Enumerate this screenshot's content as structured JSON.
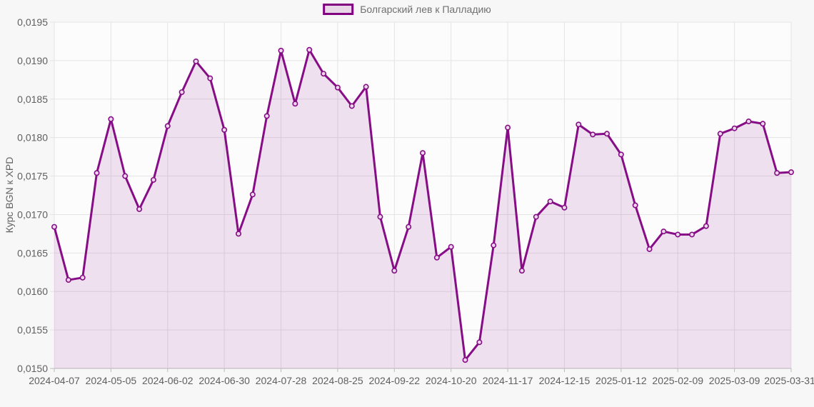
{
  "page": {
    "background": "#f7f7f7"
  },
  "legend": {
    "label": "Болгарский лев к Палладию",
    "swatch_fill": "#e7d7e7",
    "swatch_border": "#800080"
  },
  "y_axis": {
    "title": "Курс BGN к XPD",
    "tick_labels": [
      "0,0195",
      "0,0190",
      "0,0185",
      "0,0180",
      "0,0175",
      "0,0170",
      "0,0165",
      "0,0160",
      "0,0155",
      "0,0150"
    ]
  },
  "x_axis": {
    "tick_labels": [
      "2024-04-07",
      "2024-05-05",
      "2024-06-02",
      "2024-06-30",
      "2024-07-28",
      "2024-08-25",
      "2024-09-22",
      "2024-10-20",
      "2024-11-17",
      "2024-12-15",
      "2025-01-12",
      "2025-02-09",
      "2025-03-09",
      "2025-03-31"
    ],
    "tick_indices": [
      0,
      4,
      8,
      12,
      16,
      20,
      24,
      28,
      32,
      36,
      40,
      44,
      48,
      52
    ]
  },
  "chart_data": {
    "type": "area",
    "title": "Болгарский лев к Палладию",
    "xlabel": "",
    "ylabel": "Курс BGN к XPD",
    "ylim": [
      0.015,
      0.0195
    ],
    "y_tick_step": 0.0005,
    "grid": true,
    "legend_position": "top-center",
    "x": [
      "2024-04-07",
      "2024-04-14",
      "2024-04-21",
      "2024-04-28",
      "2024-05-05",
      "2024-05-12",
      "2024-05-19",
      "2024-05-26",
      "2024-06-02",
      "2024-06-09",
      "2024-06-16",
      "2024-06-23",
      "2024-06-30",
      "2024-07-07",
      "2024-07-14",
      "2024-07-21",
      "2024-07-28",
      "2024-08-04",
      "2024-08-11",
      "2024-08-18",
      "2024-08-25",
      "2024-09-01",
      "2024-09-08",
      "2024-09-15",
      "2024-09-22",
      "2024-09-29",
      "2024-10-06",
      "2024-10-13",
      "2024-10-20",
      "2024-10-27",
      "2024-11-03",
      "2024-11-10",
      "2024-11-17",
      "2024-11-24",
      "2024-12-01",
      "2024-12-08",
      "2024-12-15",
      "2024-12-22",
      "2024-12-29",
      "2025-01-05",
      "2025-01-12",
      "2025-01-19",
      "2025-01-26",
      "2025-02-02",
      "2025-02-09",
      "2025-02-16",
      "2025-02-23",
      "2025-03-02",
      "2025-03-09",
      "2025-03-16",
      "2025-03-23",
      "2025-03-30",
      "2025-03-31"
    ],
    "series": [
      {
        "name": "Болгарский лев к Палладию",
        "values": [
          0.01684,
          0.01615,
          0.01618,
          0.01754,
          0.01824,
          0.0175,
          0.01707,
          0.01745,
          0.01815,
          0.01859,
          0.01899,
          0.01877,
          0.0181,
          0.01675,
          0.01726,
          0.01828,
          0.01913,
          0.01844,
          0.01914,
          0.01883,
          0.01865,
          0.01841,
          0.01866,
          0.01697,
          0.01627,
          0.01684,
          0.0178,
          0.01644,
          0.01658,
          0.01511,
          0.01534,
          0.0166,
          0.01813,
          0.01627,
          0.01697,
          0.01717,
          0.01709,
          0.01817,
          0.01804,
          0.01805,
          0.01778,
          0.01712,
          0.01655,
          0.01678,
          0.01674,
          0.01674,
          0.01685,
          0.01805,
          0.01812,
          0.01821,
          0.01818,
          0.01754,
          0.01755
        ]
      }
    ],
    "colors": {
      "line": "#860d86",
      "area_fill": "#800080",
      "area_opacity": 0.11,
      "marker_fill": "#ecd7ec",
      "plot_background": "#fcfcfc",
      "gridline": "#e4e4e4",
      "axis_line": "#bbbbbb",
      "tick_text": "#606060"
    }
  }
}
